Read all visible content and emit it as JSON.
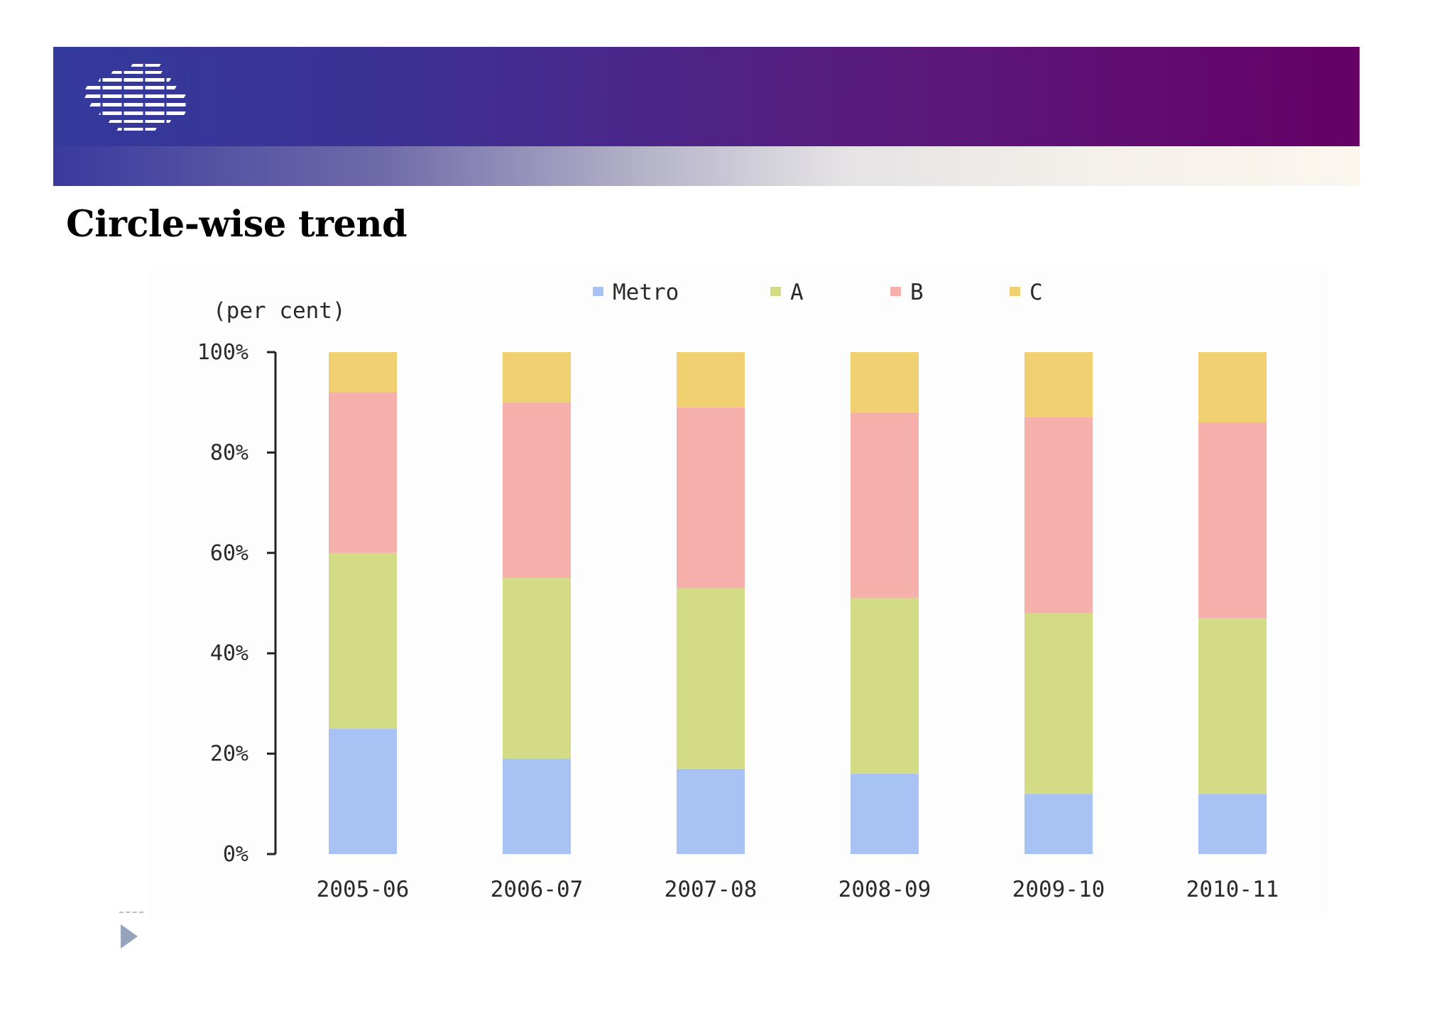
{
  "slide": {
    "title": "Circle-wise trend"
  },
  "icons": {
    "logo": "striped-logo-icon",
    "bullet": "triangle-bullet-icon"
  },
  "colors": {
    "banner_left": "#333a9c",
    "banner_right": "#660066",
    "metro": "#a9c2f4",
    "a": "#d3db85",
    "b": "#f5b0ab",
    "c": "#f0d070"
  },
  "chart_data": {
    "type": "bar",
    "stacked": true,
    "percent_stacked": true,
    "ylabel": "(per cent)",
    "ylim": [
      0,
      100
    ],
    "yticks": [
      "0%",
      "20%",
      "40%",
      "60%",
      "80%",
      "100%"
    ],
    "categories": [
      "2005-06",
      "2006-07",
      "2007-08",
      "2008-09",
      "2009-10",
      "2010-11"
    ],
    "series": [
      {
        "name": "Metro",
        "color": "#a9c2f4",
        "values": [
          25,
          19,
          17,
          16,
          12,
          12
        ]
      },
      {
        "name": "A",
        "color": "#d3db85",
        "values": [
          35,
          36,
          36,
          35,
          36,
          35
        ]
      },
      {
        "name": "B",
        "color": "#f5b0ab",
        "values": [
          32,
          35,
          36,
          37,
          39,
          39
        ]
      },
      {
        "name": "C",
        "color": "#f0d070",
        "values": [
          8,
          10,
          11,
          12,
          13,
          14
        ]
      }
    ],
    "legend_position": "top",
    "grid": false
  }
}
